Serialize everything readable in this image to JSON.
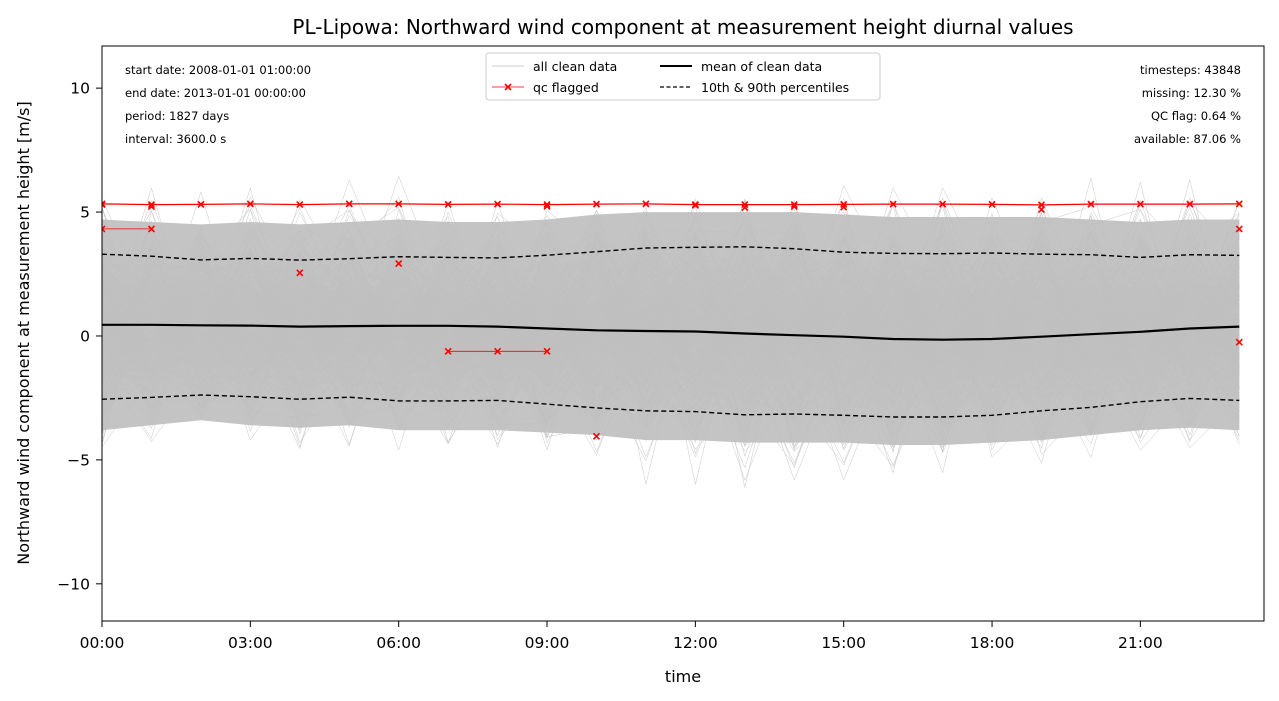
{
  "chart_data": {
    "type": "line",
    "title": "PL-Lipowa: Northward wind component at measurement height diurnal values",
    "xlabel": "time",
    "ylabel": "Northward wind component at measurement height [m/s]",
    "xlim": [
      0,
      23.5
    ],
    "ylim": [
      -11.5,
      11.7
    ],
    "x_ticks": [
      {
        "value": 0,
        "label": "00:00"
      },
      {
        "value": 3,
        "label": "03:00"
      },
      {
        "value": 6,
        "label": "06:00"
      },
      {
        "value": 9,
        "label": "09:00"
      },
      {
        "value": 12,
        "label": "12:00"
      },
      {
        "value": 15,
        "label": "15:00"
      },
      {
        "value": 18,
        "label": "18:00"
      },
      {
        "value": 21,
        "label": "21:00"
      }
    ],
    "y_ticks": [
      {
        "value": 10,
        "label": "10"
      },
      {
        "value": 5,
        "label": "5"
      },
      {
        "value": 0,
        "label": "0"
      },
      {
        "value": -5,
        "label": "−5"
      },
      {
        "value": -10,
        "label": "−10"
      }
    ],
    "x": [
      0,
      1,
      2,
      3,
      4,
      5,
      6,
      7,
      8,
      9,
      10,
      11,
      12,
      13,
      14,
      15,
      16,
      17,
      18,
      19,
      20,
      21,
      22,
      23
    ],
    "series": [
      {
        "name": "mean of clean data",
        "values": [
          0.45,
          0.45,
          0.43,
          0.42,
          0.38,
          0.4,
          0.41,
          0.41,
          0.38,
          0.3,
          0.23,
          0.2,
          0.18,
          0.1,
          0.03,
          -0.03,
          -0.12,
          -0.15,
          -0.12,
          -0.03,
          0.07,
          0.17,
          0.3,
          0.38
        ]
      },
      {
        "name": "10th & 90th percentiles",
        "upper": [
          3.3,
          3.22,
          3.07,
          3.13,
          3.06,
          3.12,
          3.2,
          3.17,
          3.15,
          3.26,
          3.4,
          3.55,
          3.58,
          3.6,
          3.52,
          3.38,
          3.33,
          3.32,
          3.35,
          3.3,
          3.28,
          3.17,
          3.28,
          3.25
        ],
        "lower": [
          -2.55,
          -2.48,
          -2.38,
          -2.45,
          -2.55,
          -2.47,
          -2.62,
          -2.62,
          -2.6,
          -2.75,
          -2.9,
          -3.02,
          -3.05,
          -3.18,
          -3.15,
          -3.2,
          -3.27,
          -3.27,
          -3.2,
          -3.02,
          -2.88,
          -2.65,
          -2.52,
          -2.6
        ]
      }
    ],
    "clean_data_band": {
      "name": "all clean data",
      "color": "#bfbfbf",
      "core_upper": [
        4.7,
        4.6,
        4.5,
        4.6,
        4.5,
        4.6,
        4.7,
        4.6,
        4.6,
        4.7,
        4.9,
        5.0,
        5.0,
        5.0,
        5.0,
        4.9,
        4.8,
        4.8,
        4.8,
        4.8,
        4.7,
        4.6,
        4.7,
        4.7
      ],
      "core_lower": [
        -3.8,
        -3.6,
        -3.4,
        -3.6,
        -3.7,
        -3.6,
        -3.8,
        -3.8,
        -3.8,
        -3.9,
        -4.0,
        -4.2,
        -4.2,
        -4.3,
        -4.3,
        -4.3,
        -4.4,
        -4.4,
        -4.3,
        -4.2,
        -4.0,
        -3.8,
        -3.7,
        -3.8
      ]
    },
    "qc_flagged": {
      "name": "qc flagged",
      "color": "#ff0000",
      "top_line": [
        5.33,
        5.3,
        5.31,
        5.33,
        5.3,
        5.33,
        5.33,
        5.31,
        5.32,
        5.3,
        5.32,
        5.33,
        5.3,
        5.3,
        5.3,
        5.31,
        5.32,
        5.32,
        5.31,
        5.29,
        5.32,
        5.32,
        5.32,
        5.33
      ],
      "top_line_extra": [
        [
          0,
          5.3
        ],
        [
          1,
          5.22
        ],
        [
          9,
          5.23
        ],
        [
          12,
          5.27
        ],
        [
          13,
          5.18
        ],
        [
          14,
          5.22
        ],
        [
          15,
          5.2
        ],
        [
          19,
          5.1
        ]
      ],
      "segments": [
        [
          [
            0,
            4.32
          ],
          [
            1,
            4.32
          ]
        ],
        [
          [
            7,
            -0.62
          ],
          [
            8,
            -0.62
          ],
          [
            9,
            -0.62
          ]
        ]
      ],
      "points": [
        [
          4,
          2.55
        ],
        [
          6,
          2.92
        ],
        [
          10,
          -4.05
        ],
        [
          23,
          4.32
        ],
        [
          23,
          -0.25
        ]
      ]
    },
    "legend": {
      "placement": "upper center",
      "entries": [
        {
          "label": "all clean data",
          "style": "thin-gray"
        },
        {
          "label": "mean of clean data",
          "style": "solid-black"
        },
        {
          "label": "qc flagged",
          "style": "red-x"
        },
        {
          "label": "10th & 90th percentiles",
          "style": "dashed-black"
        }
      ]
    },
    "info_left": [
      "start date: 2008-01-01 01:00:00",
      "end date: 2013-01-01 00:00:00",
      "period: 1827 days",
      "interval: 3600.0 s"
    ],
    "info_right": [
      "timesteps: 43848",
      "missing: 12.30 %",
      "QC flag: 0.64 %",
      "available: 87.06 %"
    ],
    "grid": false
  }
}
